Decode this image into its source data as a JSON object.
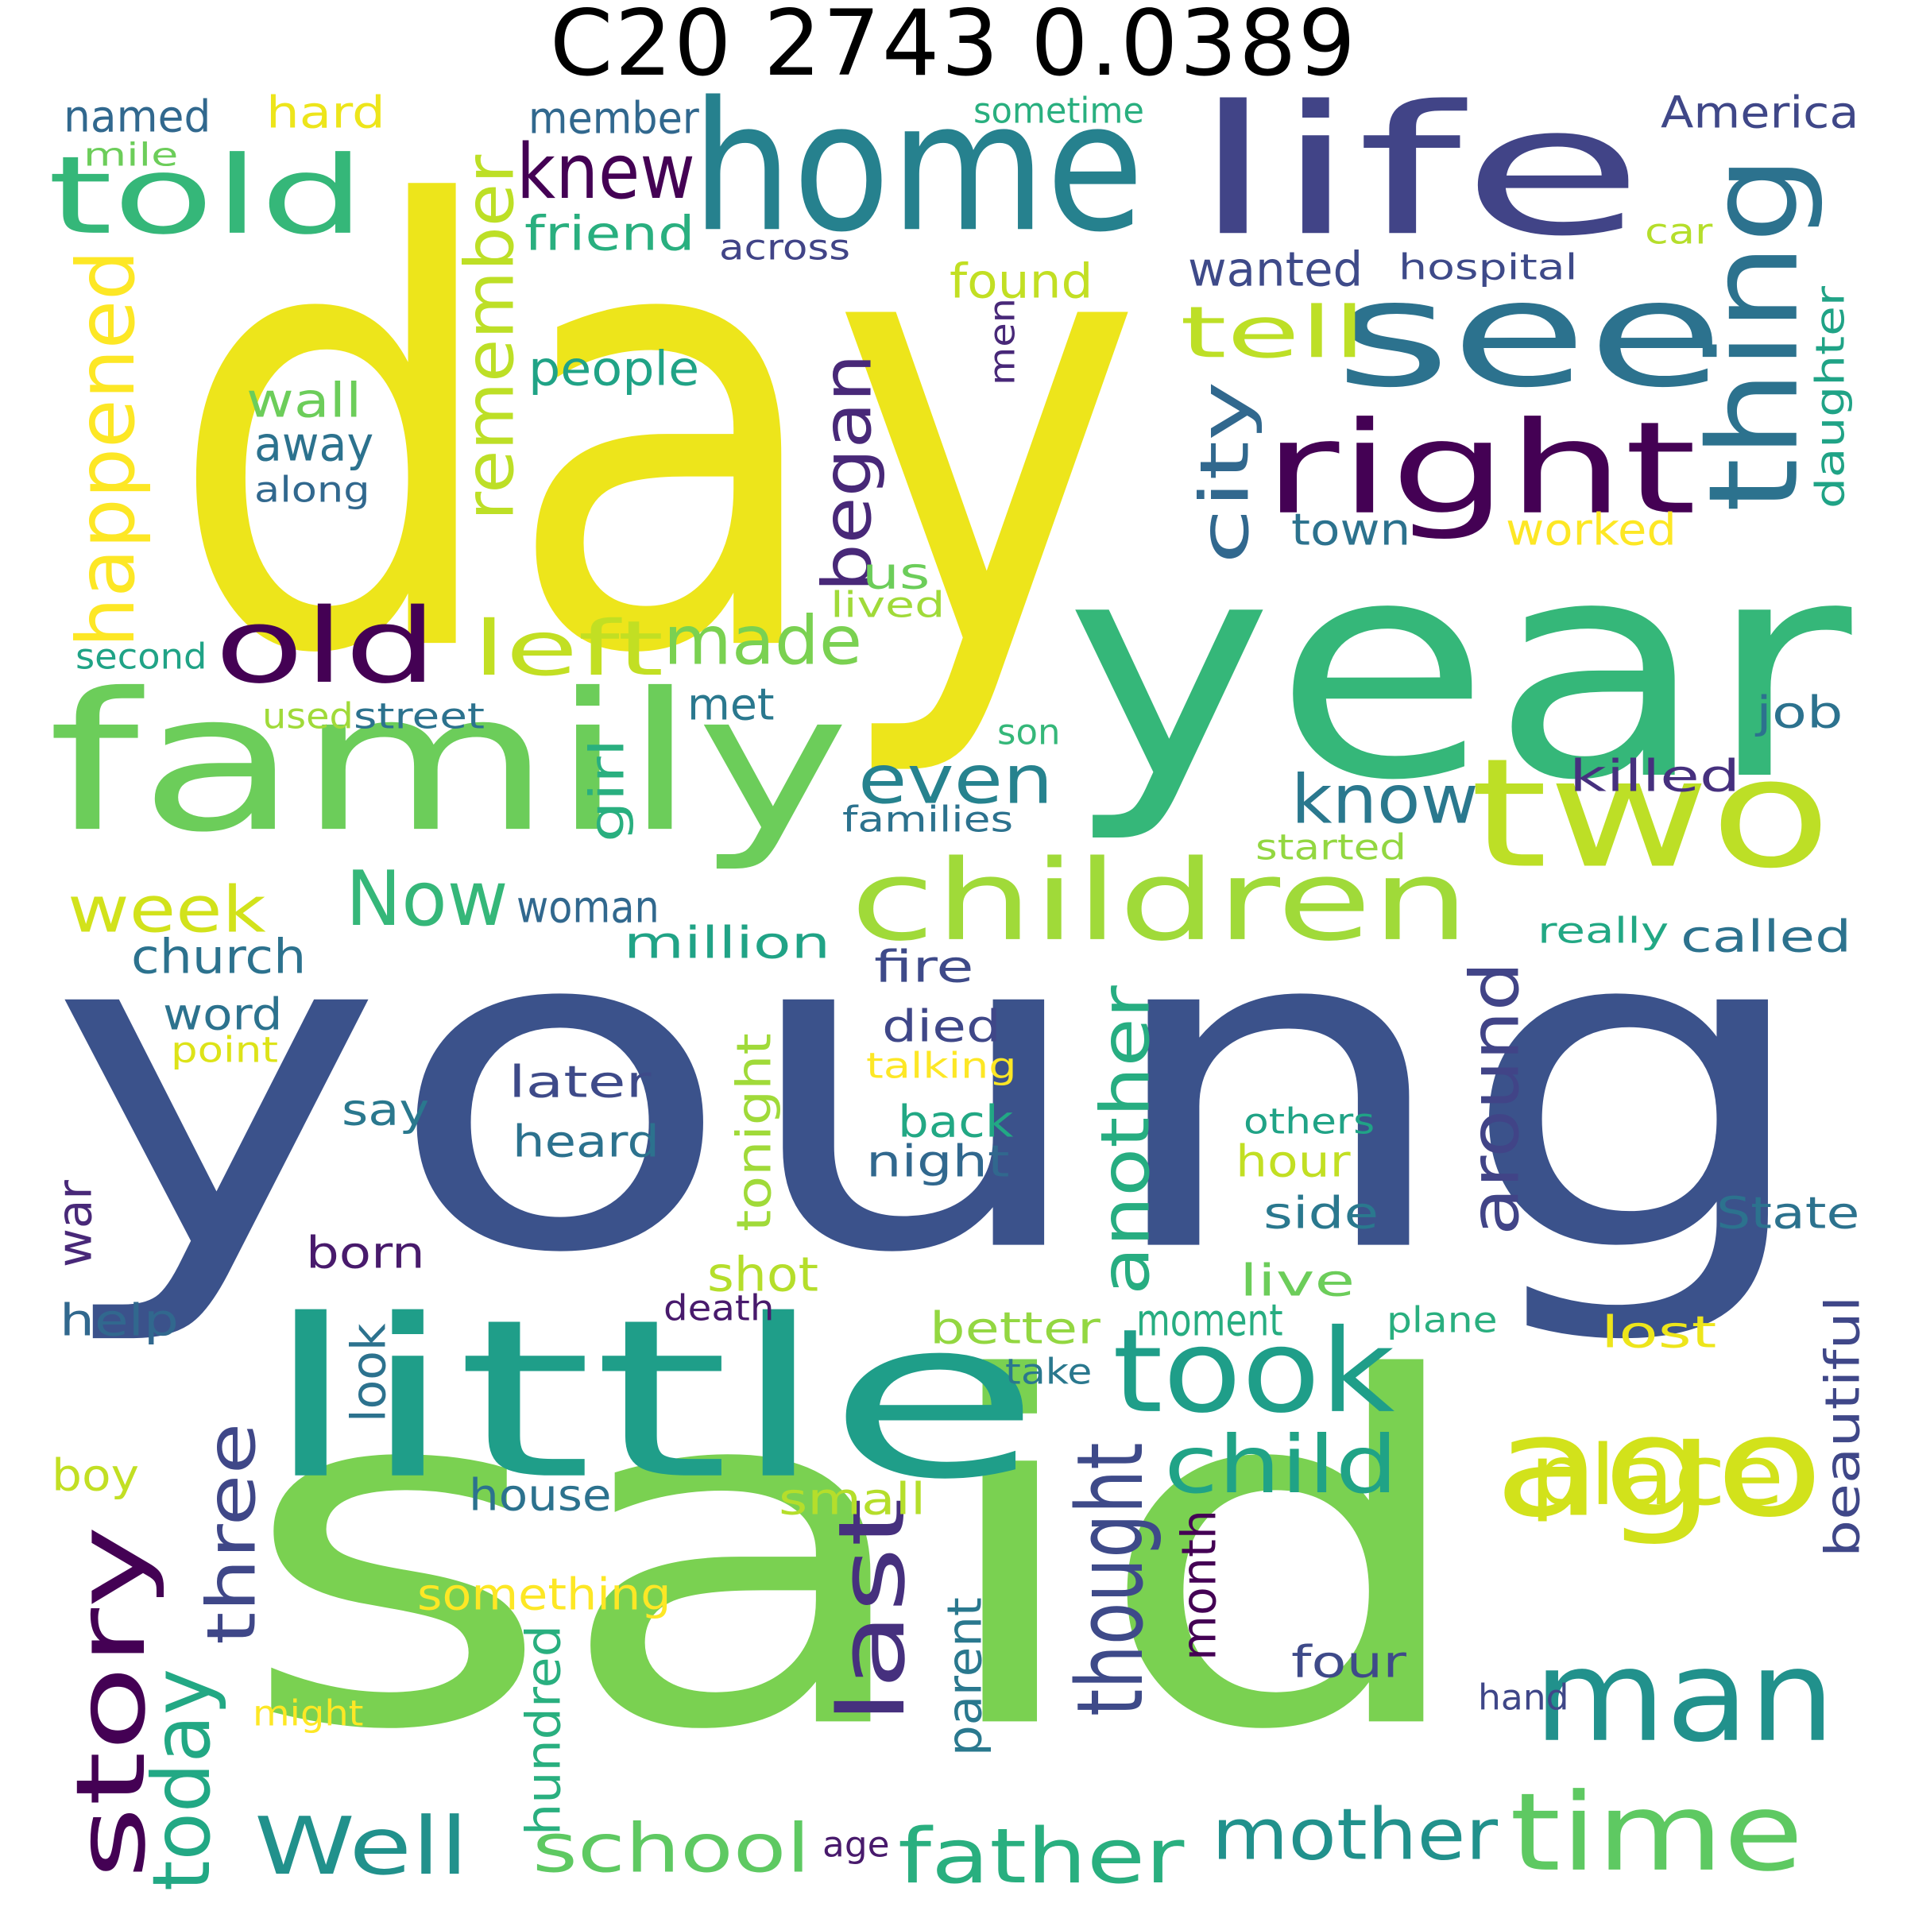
{
  "title": "C20 2743 0.0389",
  "words": [
    {
      "text": "day",
      "color": "#EDE51B"
    },
    {
      "text": "young",
      "color": "#3B528B"
    },
    {
      "text": "said",
      "color": "#7AD151"
    },
    {
      "text": "year",
      "color": "#35B779"
    },
    {
      "text": "home",
      "color": "#26818E"
    },
    {
      "text": "life",
      "color": "#414487"
    },
    {
      "text": "see",
      "color": "#2C728E"
    },
    {
      "text": "family",
      "color": "#6CCD5A"
    },
    {
      "text": "little",
      "color": "#1F9E89"
    },
    {
      "text": "two",
      "color": "#BDDF26"
    },
    {
      "text": "ago",
      "color": "#D2E21B"
    },
    {
      "text": "children",
      "color": "#A0DA39"
    },
    {
      "text": "right",
      "color": "#440154"
    },
    {
      "text": "thing",
      "color": "#2C728E"
    },
    {
      "text": "told",
      "color": "#35B779"
    },
    {
      "text": "took",
      "color": "#1F9E89"
    },
    {
      "text": "man",
      "color": "#21918C"
    },
    {
      "text": "time",
      "color": "#5EC962"
    },
    {
      "text": "story",
      "color": "#440154"
    },
    {
      "text": "old",
      "color": "#440154"
    },
    {
      "text": "Now",
      "color": "#35B779"
    },
    {
      "text": "place",
      "color": "#D2E21B"
    },
    {
      "text": "Well",
      "color": "#21918C"
    },
    {
      "text": "father",
      "color": "#29AF7F"
    },
    {
      "text": "mother",
      "color": "#21918C"
    },
    {
      "text": "school",
      "color": "#5EC962"
    },
    {
      "text": "child",
      "color": "#20A386"
    },
    {
      "text": "made",
      "color": "#7AD151"
    },
    {
      "text": "left",
      "color": "#C2DF23"
    },
    {
      "text": "knew",
      "color": "#440154"
    },
    {
      "text": "tell",
      "color": "#BDDF26"
    },
    {
      "text": "even",
      "color": "#26828E"
    },
    {
      "text": "know",
      "color": "#2A788E"
    },
    {
      "text": "week",
      "color": "#D2E21B"
    },
    {
      "text": "began",
      "color": "#482878"
    },
    {
      "text": "remember",
      "color": "#BDDF26"
    },
    {
      "text": "happened",
      "color": "#FDE725"
    },
    {
      "text": "city",
      "color": "#31688E"
    },
    {
      "text": "three",
      "color": "#3F4788"
    },
    {
      "text": "today",
      "color": "#22A884"
    },
    {
      "text": "last",
      "color": "#46307E"
    },
    {
      "text": "thought",
      "color": "#3E4A89"
    },
    {
      "text": "another",
      "color": "#27AD81"
    },
    {
      "text": "around",
      "color": "#414487"
    },
    {
      "text": "church",
      "color": "#2C728E"
    },
    {
      "text": "people",
      "color": "#20A386"
    },
    {
      "text": "wall",
      "color": "#6CCD5A"
    },
    {
      "text": "away",
      "color": "#2C728E"
    },
    {
      "text": "along",
      "color": "#31688E"
    },
    {
      "text": "friend",
      "color": "#29AF7F"
    },
    {
      "text": "named",
      "color": "#31688E"
    },
    {
      "text": "hard",
      "color": "#EDE51B"
    },
    {
      "text": "member",
      "color": "#31688E"
    },
    {
      "text": "sometime",
      "color": "#29AF7F"
    },
    {
      "text": "America",
      "color": "#3F4788"
    },
    {
      "text": "mile",
      "color": "#6CCD5A"
    },
    {
      "text": "across",
      "color": "#414487"
    },
    {
      "text": "car",
      "color": "#B5DE2B"
    },
    {
      "text": "hospital",
      "color": "#3E4A89"
    },
    {
      "text": "wanted",
      "color": "#3E4A89"
    },
    {
      "text": "found",
      "color": "#C2DF23"
    },
    {
      "text": "men",
      "color": "#482878"
    },
    {
      "text": "daughter",
      "color": "#20A386"
    },
    {
      "text": "town",
      "color": "#2C728E"
    },
    {
      "text": "worked",
      "color": "#FDE725"
    },
    {
      "text": "us",
      "color": "#6CCD5A"
    },
    {
      "text": "lived",
      "color": "#A0DA39"
    },
    {
      "text": "second",
      "color": "#20A386"
    },
    {
      "text": "used",
      "color": "#A0DA39"
    },
    {
      "text": "street",
      "color": "#2C728E"
    },
    {
      "text": "met",
      "color": "#2A788E"
    },
    {
      "text": "son",
      "color": "#35B779"
    },
    {
      "text": "job",
      "color": "#2C728E"
    },
    {
      "text": "killed",
      "color": "#46307E"
    },
    {
      "text": "families",
      "color": "#2C728E"
    },
    {
      "text": "started",
      "color": "#93D741"
    },
    {
      "text": "girl",
      "color": "#29AF7F"
    },
    {
      "text": "woman",
      "color": "#31688E"
    },
    {
      "text": "million",
      "color": "#20A386"
    },
    {
      "text": "really",
      "color": "#22A884"
    },
    {
      "text": "called",
      "color": "#2C728E"
    },
    {
      "text": "fire",
      "color": "#3E4A89"
    },
    {
      "text": "word",
      "color": "#2C728E"
    },
    {
      "text": "point",
      "color": "#DDE318"
    },
    {
      "text": "died",
      "color": "#3F4788"
    },
    {
      "text": "talking",
      "color": "#FDE725"
    },
    {
      "text": "later",
      "color": "#3E4A89"
    },
    {
      "text": "tonight",
      "color": "#A0DA39"
    },
    {
      "text": "others",
      "color": "#20A386"
    },
    {
      "text": "say",
      "color": "#2A788E"
    },
    {
      "text": "back",
      "color": "#22A884"
    },
    {
      "text": "heard",
      "color": "#2C728E"
    },
    {
      "text": "night",
      "color": "#31688E"
    },
    {
      "text": "hour",
      "color": "#C2DF23"
    },
    {
      "text": "war",
      "color": "#482878"
    },
    {
      "text": "born",
      "color": "#481A6C"
    },
    {
      "text": "side",
      "color": "#2A788E"
    },
    {
      "text": "State",
      "color": "#2C728E"
    },
    {
      "text": "shot",
      "color": "#B5DE2B"
    },
    {
      "text": "live",
      "color": "#6CCD5A"
    },
    {
      "text": "help",
      "color": "#31688E"
    },
    {
      "text": "death",
      "color": "#481A6C"
    },
    {
      "text": "moment",
      "color": "#27AD81"
    },
    {
      "text": "plane",
      "color": "#29AF7F"
    },
    {
      "text": "lost",
      "color": "#EDE51B"
    },
    {
      "text": "better",
      "color": "#93D741"
    },
    {
      "text": "look",
      "color": "#2C728E"
    },
    {
      "text": "take",
      "color": "#2A788E"
    },
    {
      "text": "beautiful",
      "color": "#3F4788"
    },
    {
      "text": "boy",
      "color": "#C2DF23"
    },
    {
      "text": "house",
      "color": "#2C728E"
    },
    {
      "text": "small",
      "color": "#B5DE2B"
    },
    {
      "text": "month",
      "color": "#440154"
    },
    {
      "text": "something",
      "color": "#FDE725"
    },
    {
      "text": "parent",
      "color": "#2A788E"
    },
    {
      "text": "four",
      "color": "#3E4A89"
    },
    {
      "text": "hundred",
      "color": "#29AF7F"
    },
    {
      "text": "might",
      "color": "#FDE725"
    },
    {
      "text": "hand",
      "color": "#3F4788"
    },
    {
      "text": "age",
      "color": "#481A6C"
    }
  ]
}
